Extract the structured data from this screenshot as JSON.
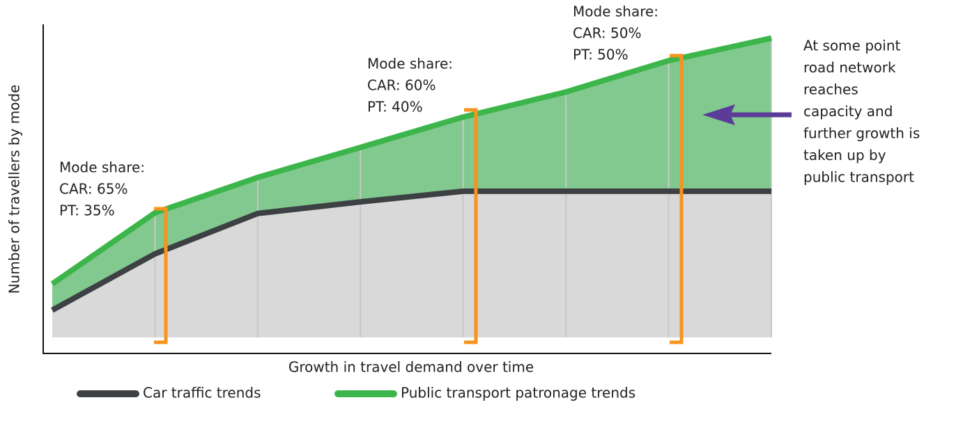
{
  "chart_data": {
    "type": "line",
    "xlabel": "Growth in travel demand over time",
    "ylabel": "Number of travellers by mode",
    "categories": [
      null,
      null,
      null,
      null,
      null,
      null,
      null,
      null
    ],
    "ylim": [
      0,
      100
    ],
    "series": [
      {
        "name": "Car traffic trends",
        "color": "#3d4144",
        "fill": "#d9d9d9",
        "values": [
          8.7,
          26.7,
          39.6,
          43.3,
          46.7,
          46.7,
          46.7,
          46.7
        ]
      },
      {
        "name": "Public transport patronage trends",
        "color": "#3cb54a",
        "fill": "#82c98f",
        "values": [
          17.1,
          39.8,
          51.1,
          60.7,
          70.4,
          78.4,
          88.4,
          95.6
        ]
      }
    ],
    "annotations": [
      [
        "Mode share:",
        "CAR: 65%",
        "PT: 35%"
      ],
      [
        "Mode share:",
        "CAR: 60%",
        "PT: 40%"
      ],
      [
        "Mode share:",
        "CAR: 50%",
        "PT: 50%"
      ]
    ],
    "note": [
      "At some point",
      "road network",
      "reaches",
      "capacity and",
      "further growth is",
      "taken up by",
      "public transport"
    ]
  }
}
